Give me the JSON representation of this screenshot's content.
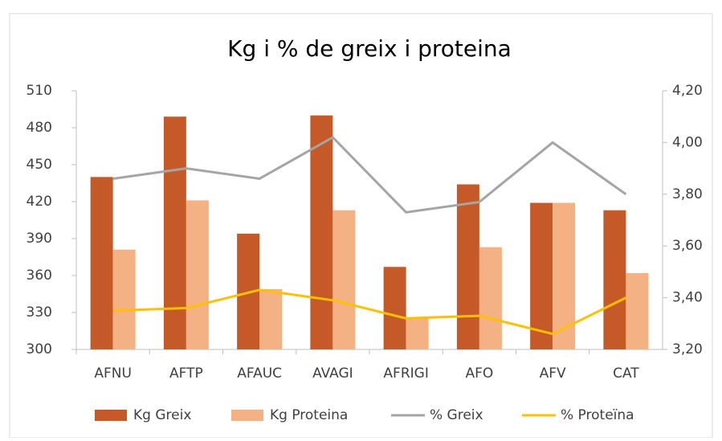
{
  "chart_data": {
    "type": "bar-line",
    "title": "Kg i % de greix i proteina",
    "categories": [
      "AFNU",
      "AFTP",
      "AFAUC",
      "AVAGI",
      "AFRIGI",
      "AFO",
      "AFV",
      "CAT"
    ],
    "series": [
      {
        "name": "Kg Greix",
        "type": "bar",
        "color": "#c55a28",
        "values": [
          440,
          489,
          394,
          490,
          367,
          434,
          419,
          413
        ]
      },
      {
        "name": "Kg Proteina",
        "type": "bar",
        "color": "#f4b183",
        "values": [
          381,
          421,
          349,
          413,
          326,
          383,
          419,
          362
        ]
      },
      {
        "name": "% Greix",
        "type": "line",
        "axis": "y2",
        "color": "#a5a5a5",
        "values": [
          3.86,
          3.9,
          3.86,
          4.02,
          3.73,
          3.77,
          4.0,
          3.8
        ]
      },
      {
        "name": "% Proteïna",
        "type": "line",
        "axis": "y2",
        "color": "#ffc000",
        "values": [
          3.35,
          3.36,
          3.43,
          3.39,
          3.32,
          3.33,
          3.26,
          3.4
        ]
      }
    ],
    "ylim": [
      300,
      510
    ],
    "yticks": [
      300,
      330,
      360,
      390,
      420,
      450,
      480,
      510
    ],
    "y2lim": [
      3.2,
      4.2
    ],
    "y2ticks": [
      {
        "value": 3.2,
        "label": "3,20"
      },
      {
        "value": 3.4,
        "label": "3,40"
      },
      {
        "value": 3.6,
        "label": "3,60"
      },
      {
        "value": 3.8,
        "label": "3,80"
      },
      {
        "value": 4.0,
        "label": "4,00"
      },
      {
        "value": 4.2,
        "label": "4,20"
      }
    ],
    "legend": "bottom"
  }
}
